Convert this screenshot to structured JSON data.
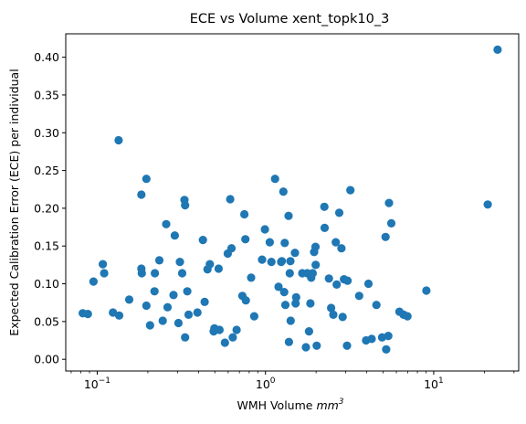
{
  "chart_data": {
    "type": "scatter",
    "title": "ECE vs Volume xent_topk10_3",
    "xlabel": "WMH Volume mm³",
    "xlabel_main": "WMH Volume ",
    "xlabel_unit": "mm",
    "xlabel_unit_exp": "3",
    "ylabel": "Expected Calibration Error (ECE) per individual",
    "xscale": "log",
    "xlim": [
      0.065,
      32
    ],
    "ylim": [
      -0.0155,
      0.431
    ],
    "yticks": [
      0.0,
      0.05,
      0.1,
      0.15,
      0.2,
      0.25,
      0.3,
      0.35,
      0.4
    ],
    "ytick_labels": [
      "0.00",
      "0.05",
      "0.10",
      "0.15",
      "0.20",
      "0.25",
      "0.30",
      "0.35",
      "0.40"
    ],
    "xticks": [
      {
        "value": 0.1,
        "base": "10",
        "exp": "−1"
      },
      {
        "value": 1,
        "base": "10",
        "exp": "0"
      },
      {
        "value": 10,
        "base": "10",
        "exp": "1"
      }
    ],
    "grid": false,
    "legend": "none",
    "marker_color": "#1f77b4",
    "points": [
      {
        "x": 0.082,
        "y": 0.061
      },
      {
        "x": 0.088,
        "y": 0.06
      },
      {
        "x": 0.095,
        "y": 0.103
      },
      {
        "x": 0.108,
        "y": 0.126
      },
      {
        "x": 0.11,
        "y": 0.114
      },
      {
        "x": 0.124,
        "y": 0.062
      },
      {
        "x": 0.134,
        "y": 0.29
      },
      {
        "x": 0.135,
        "y": 0.058
      },
      {
        "x": 0.155,
        "y": 0.079
      },
      {
        "x": 0.183,
        "y": 0.218
      },
      {
        "x": 0.183,
        "y": 0.12
      },
      {
        "x": 0.184,
        "y": 0.114
      },
      {
        "x": 0.196,
        "y": 0.239
      },
      {
        "x": 0.196,
        "y": 0.071
      },
      {
        "x": 0.206,
        "y": 0.045
      },
      {
        "x": 0.219,
        "y": 0.09
      },
      {
        "x": 0.22,
        "y": 0.114
      },
      {
        "x": 0.234,
        "y": 0.131
      },
      {
        "x": 0.245,
        "y": 0.051
      },
      {
        "x": 0.257,
        "y": 0.179
      },
      {
        "x": 0.262,
        "y": 0.069
      },
      {
        "x": 0.284,
        "y": 0.085
      },
      {
        "x": 0.289,
        "y": 0.164
      },
      {
        "x": 0.304,
        "y": 0.048
      },
      {
        "x": 0.31,
        "y": 0.129
      },
      {
        "x": 0.32,
        "y": 0.114
      },
      {
        "x": 0.33,
        "y": 0.211
      },
      {
        "x": 0.333,
        "y": 0.204
      },
      {
        "x": 0.333,
        "y": 0.029
      },
      {
        "x": 0.343,
        "y": 0.09
      },
      {
        "x": 0.349,
        "y": 0.059
      },
      {
        "x": 0.394,
        "y": 0.062
      },
      {
        "x": 0.425,
        "y": 0.158
      },
      {
        "x": 0.435,
        "y": 0.076
      },
      {
        "x": 0.452,
        "y": 0.119
      },
      {
        "x": 0.467,
        "y": 0.126
      },
      {
        "x": 0.492,
        "y": 0.037
      },
      {
        "x": 0.497,
        "y": 0.041
      },
      {
        "x": 0.527,
        "y": 0.12
      },
      {
        "x": 0.533,
        "y": 0.039
      },
      {
        "x": 0.574,
        "y": 0.022
      },
      {
        "x": 0.597,
        "y": 0.14
      },
      {
        "x": 0.617,
        "y": 0.212
      },
      {
        "x": 0.628,
        "y": 0.147
      },
      {
        "x": 0.639,
        "y": 0.029
      },
      {
        "x": 0.674,
        "y": 0.039
      },
      {
        "x": 0.729,
        "y": 0.084
      },
      {
        "x": 0.749,
        "y": 0.192
      },
      {
        "x": 0.76,
        "y": 0.159
      },
      {
        "x": 0.764,
        "y": 0.078
      },
      {
        "x": 0.822,
        "y": 0.108
      },
      {
        "x": 0.858,
        "y": 0.057
      },
      {
        "x": 0.955,
        "y": 0.132
      },
      {
        "x": 0.992,
        "y": 0.172
      },
      {
        "x": 1.06,
        "y": 0.155
      },
      {
        "x": 1.085,
        "y": 0.129
      },
      {
        "x": 1.14,
        "y": 0.239
      },
      {
        "x": 1.195,
        "y": 0.096
      },
      {
        "x": 1.24,
        "y": 0.129
      },
      {
        "x": 1.25,
        "y": 0.13
      },
      {
        "x": 1.278,
        "y": 0.222
      },
      {
        "x": 1.292,
        "y": 0.089
      },
      {
        "x": 1.302,
        "y": 0.154
      },
      {
        "x": 1.313,
        "y": 0.072
      },
      {
        "x": 1.372,
        "y": 0.19
      },
      {
        "x": 1.379,
        "y": 0.023
      },
      {
        "x": 1.395,
        "y": 0.114
      },
      {
        "x": 1.407,
        "y": 0.13
      },
      {
        "x": 1.412,
        "y": 0.051
      },
      {
        "x": 1.497,
        "y": 0.141
      },
      {
        "x": 1.51,
        "y": 0.074
      },
      {
        "x": 1.522,
        "y": 0.082
      },
      {
        "x": 1.654,
        "y": 0.114
      },
      {
        "x": 1.74,
        "y": 0.016
      },
      {
        "x": 1.773,
        "y": 0.114
      },
      {
        "x": 1.814,
        "y": 0.037
      },
      {
        "x": 1.85,
        "y": 0.074
      },
      {
        "x": 1.87,
        "y": 0.108
      },
      {
        "x": 1.909,
        "y": 0.114
      },
      {
        "x": 1.947,
        "y": 0.142
      },
      {
        "x": 1.983,
        "y": 0.149
      },
      {
        "x": 1.988,
        "y": 0.125
      },
      {
        "x": 2.017,
        "y": 0.018
      },
      {
        "x": 2.24,
        "y": 0.202
      },
      {
        "x": 2.249,
        "y": 0.174
      },
      {
        "x": 2.383,
        "y": 0.107
      },
      {
        "x": 2.457,
        "y": 0.068
      },
      {
        "x": 2.531,
        "y": 0.059
      },
      {
        "x": 2.618,
        "y": 0.155
      },
      {
        "x": 2.652,
        "y": 0.099
      },
      {
        "x": 2.744,
        "y": 0.194
      },
      {
        "x": 2.83,
        "y": 0.147
      },
      {
        "x": 2.876,
        "y": 0.056
      },
      {
        "x": 2.931,
        "y": 0.106
      },
      {
        "x": 3.053,
        "y": 0.018
      },
      {
        "x": 3.074,
        "y": 0.104
      },
      {
        "x": 3.199,
        "y": 0.224
      },
      {
        "x": 3.603,
        "y": 0.084
      },
      {
        "x": 3.964,
        "y": 0.025
      },
      {
        "x": 4.095,
        "y": 0.1
      },
      {
        "x": 4.279,
        "y": 0.027
      },
      {
        "x": 4.568,
        "y": 0.072
      },
      {
        "x": 4.936,
        "y": 0.029
      },
      {
        "x": 5.172,
        "y": 0.162
      },
      {
        "x": 5.217,
        "y": 0.013
      },
      {
        "x": 5.373,
        "y": 0.031
      },
      {
        "x": 5.423,
        "y": 0.207
      },
      {
        "x": 5.597,
        "y": 0.18
      },
      {
        "x": 6.258,
        "y": 0.063
      },
      {
        "x": 6.621,
        "y": 0.059
      },
      {
        "x": 6.979,
        "y": 0.057
      },
      {
        "x": 9.039,
        "y": 0.091
      },
      {
        "x": 20.94,
        "y": 0.205
      },
      {
        "x": 23.98,
        "y": 0.41
      }
    ]
  }
}
